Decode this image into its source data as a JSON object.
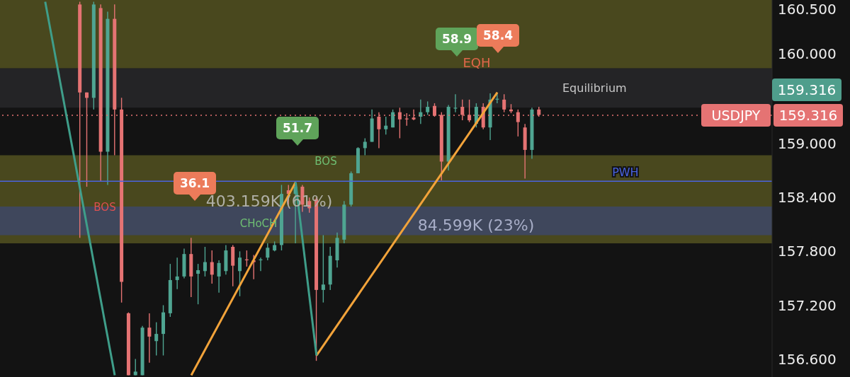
{
  "chart_data": {
    "type": "candlestick",
    "categories": [
      null,
      null,
      null,
      null,
      null,
      null,
      null,
      null,
      null,
      null,
      null,
      null,
      null,
      null,
      null,
      null,
      null,
      null,
      null,
      null,
      null,
      null,
      null,
      null,
      null,
      null,
      null,
      null,
      null,
      null,
      null,
      null,
      null,
      null,
      null,
      null,
      null,
      null,
      null,
      null,
      null,
      null,
      null,
      null,
      null,
      null,
      null,
      null,
      null,
      null,
      null,
      null,
      null,
      null,
      null,
      null,
      null,
      null,
      null,
      null,
      null,
      null,
      null,
      null,
      null,
      null,
      null,
      null,
      null,
      null,
      null,
      null,
      null,
      null,
      null,
      null,
      null,
      null,
      null,
      null,
      null,
      null,
      null,
      null,
      null,
      null,
      null,
      null,
      null,
      null,
      null,
      null,
      null,
      null,
      null,
      null,
      null,
      null,
      null,
      null,
      null,
      null,
      null,
      null,
      null,
      null,
      null,
      null,
      null,
      null,
      null
    ],
    "ohlc": [
      null,
      null,
      null,
      null,
      null,
      null,
      null,
      null,
      null,
      null,
      null,
      [
        160.55,
        160.58,
        157.95,
        159.57
      ],
      [
        159.57,
        159.57,
        158.52,
        159.51
      ],
      [
        159.51,
        160.58,
        159.38,
        160.55
      ],
      [
        160.51,
        160.55,
        158.58,
        158.91
      ],
      [
        158.91,
        160.47,
        158.54,
        160.39
      ],
      [
        160.39,
        160.55,
        158.87,
        159.38
      ],
      [
        159.38,
        159.51,
        157.23,
        157.46
      ],
      [
        157.11,
        157.12,
        156.42,
        156.42
      ],
      [
        156.42,
        156.6,
        156.42,
        156.46
      ],
      [
        156.42,
        156.97,
        156.42,
        156.95
      ],
      [
        156.95,
        157.11,
        156.56,
        156.85
      ],
      [
        156.8,
        157.01,
        156.64,
        156.88
      ],
      [
        156.88,
        157.2,
        156.64,
        157.12
      ],
      [
        157.11,
        157.66,
        157.07,
        157.48
      ],
      [
        157.48,
        157.73,
        157.38,
        157.52
      ],
      [
        157.52,
        157.83,
        157.5,
        157.77
      ],
      [
        157.77,
        157.95,
        157.29,
        157.52
      ],
      [
        157.55,
        157.66,
        157.21,
        157.59
      ],
      [
        157.58,
        157.85,
        157.52,
        157.68
      ],
      [
        157.68,
        157.81,
        157.44,
        157.54
      ],
      [
        157.52,
        157.7,
        157.34,
        157.67
      ],
      [
        157.58,
        157.87,
        157.54,
        157.81
      ],
      [
        157.85,
        157.87,
        157.41,
        157.64
      ],
      [
        157.58,
        157.8,
        157.3,
        157.73
      ],
      [
        157.71,
        157.81,
        157.63,
        157.7
      ],
      [
        157.7,
        157.76,
        157.49,
        157.68
      ],
      [
        157.7,
        157.73,
        157.58,
        157.71
      ],
      [
        157.73,
        157.89,
        157.7,
        157.84
      ],
      [
        157.81,
        157.91,
        157.8,
        157.87
      ],
      [
        157.87,
        158.54,
        157.81,
        158.44
      ],
      [
        158.48,
        158.54,
        158.32,
        158.44
      ],
      [
        158.44,
        158.57,
        157.89,
        158.52
      ],
      [
        158.52,
        158.54,
        158.24,
        158.32
      ],
      [
        158.36,
        158.4,
        158.23,
        158.28
      ],
      [
        158.38,
        158.4,
        156.58,
        157.37
      ],
      [
        157.37,
        157.98,
        157.23,
        157.43
      ],
      [
        157.43,
        157.85,
        157.37,
        157.75
      ],
      [
        157.7,
        158.01,
        157.62,
        157.95
      ],
      [
        157.93,
        158.36,
        157.89,
        158.32
      ],
      [
        158.32,
        158.69,
        158.3,
        158.67
      ],
      [
        158.67,
        158.96,
        158.67,
        158.95
      ],
      [
        158.95,
        159.06,
        158.87,
        159.02
      ],
      [
        159.02,
        159.38,
        159.02,
        159.28
      ],
      [
        159.3,
        159.35,
        158.95,
        159.16
      ],
      [
        159.16,
        159.3,
        159.1,
        159.2
      ],
      [
        159.18,
        159.38,
        159.18,
        159.35
      ],
      [
        159.35,
        159.4,
        159.06,
        159.27
      ],
      [
        159.28,
        159.34,
        159.2,
        159.27
      ],
      [
        159.29,
        159.38,
        159.26,
        159.27
      ],
      [
        159.3,
        159.49,
        159.22,
        159.35
      ],
      [
        159.35,
        159.47,
        159.32,
        159.41
      ],
      [
        159.42,
        159.45,
        159.3,
        159.31
      ],
      [
        159.32,
        159.35,
        158.59,
        158.8
      ],
      [
        158.8,
        159.43,
        158.7,
        159.41
      ],
      [
        159.39,
        159.55,
        159.35,
        159.4
      ],
      [
        159.41,
        159.49,
        159.26,
        159.32
      ],
      [
        159.32,
        159.49,
        159.24,
        159.26
      ],
      [
        159.22,
        159.45,
        159.18,
        159.41
      ],
      [
        159.41,
        159.45,
        159.16,
        159.18
      ],
      [
        159.18,
        159.56,
        159.04,
        159.49
      ],
      [
        159.49,
        159.57,
        159.45,
        159.5
      ],
      [
        159.49,
        159.55,
        159.35,
        159.38
      ],
      [
        159.38,
        159.44,
        159.34,
        159.36
      ],
      [
        159.35,
        159.38,
        159.08,
        159.24
      ],
      [
        159.18,
        159.22,
        158.61,
        158.93
      ],
      [
        158.93,
        159.4,
        158.83,
        159.38
      ],
      [
        159.38,
        159.41,
        159.3,
        159.32
      ],
      null,
      null,
      null,
      null,
      null,
      null,
      null,
      null,
      null,
      null,
      null,
      null,
      null,
      null,
      null,
      null,
      null,
      null,
      null,
      null,
      null,
      null,
      null,
      null,
      null,
      null,
      null,
      null,
      null,
      null,
      null,
      null,
      null
    ],
    "series": [
      {
        "type": "line",
        "color": "#f2a33a",
        "values": [
          null,
          null,
          null,
          null,
          null,
          null,
          null,
          null,
          null,
          null,
          null,
          null,
          null,
          null,
          null,
          null,
          null,
          null,
          null,
          null,
          null,
          null,
          null,
          null,
          null,
          null,
          null,
          156.42,
          null,
          null,
          null,
          null,
          null,
          null,
          null,
          null,
          null,
          null,
          null,
          null,
          null,
          null,
          158.57,
          null,
          null,
          null,
          null,
          null,
          null,
          null,
          null,
          null,
          null,
          null,
          null,
          null,
          null,
          null,
          null,
          null,
          null,
          null,
          null,
          null,
          null,
          null,
          null,
          null,
          null,
          null,
          null,
          null,
          null,
          null,
          null,
          null,
          null,
          null,
          null,
          null,
          null,
          null,
          null,
          null,
          null,
          null,
          null,
          null,
          null,
          null,
          null,
          null,
          null,
          null,
          null,
          null,
          null,
          null,
          null,
          null,
          null,
          null,
          null,
          null,
          null,
          null,
          null,
          null,
          null,
          null,
          null
        ]
      },
      {
        "type": "line",
        "color": "#f2a33a",
        "values": [
          null,
          null,
          null,
          null,
          null,
          null,
          null,
          null,
          null,
          null,
          null,
          null,
          null,
          null,
          null,
          null,
          null,
          null,
          null,
          null,
          null,
          null,
          null,
          null,
          null,
          null,
          null,
          null,
          null,
          null,
          null,
          null,
          null,
          null,
          null,
          null,
          null,
          null,
          null,
          null,
          null,
          null,
          null,
          null,
          null,
          156.64,
          null,
          null,
          null,
          null,
          null,
          null,
          null,
          null,
          null,
          null,
          null,
          null,
          null,
          null,
          null,
          null,
          null,
          null,
          null,
          null,
          null,
          null,
          null,
          null,
          null,
          159.57,
          null,
          null,
          null,
          null,
          null,
          null,
          null,
          null,
          null,
          null,
          null,
          null,
          null,
          null,
          null,
          null,
          null,
          null,
          null,
          null,
          null,
          null,
          null,
          null,
          null,
          null,
          null,
          null,
          null,
          null,
          null,
          null,
          null,
          null,
          null,
          null,
          null,
          null,
          null
        ]
      },
      {
        "type": "line",
        "color": "#3f9e8a",
        "values": [
          null,
          null,
          null,
          null,
          null,
          null,
          160.58,
          null,
          null,
          null,
          null,
          null,
          null,
          null,
          null,
          null,
          156.42,
          null,
          null,
          null,
          null,
          null,
          null,
          null,
          null,
          null,
          null,
          null,
          null,
          null,
          null,
          null,
          null,
          null,
          null,
          null,
          null,
          null,
          null,
          null,
          null,
          null,
          null,
          null,
          null,
          null,
          null,
          null,
          null,
          null,
          null,
          null,
          null,
          null,
          null,
          null,
          null,
          null,
          null,
          null,
          null,
          null,
          null,
          null,
          null,
          null,
          null,
          null,
          null,
          null,
          null,
          null,
          null,
          null,
          null,
          null,
          null,
          null,
          null,
          null,
          null,
          null,
          null,
          null,
          null,
          null,
          null,
          null,
          null,
          null,
          null,
          null,
          null,
          null,
          null,
          null,
          null,
          null,
          null,
          null,
          null,
          null,
          null,
          null,
          null,
          null,
          null,
          null,
          null,
          null,
          null
        ]
      },
      {
        "type": "line",
        "color": "#3f9e8a",
        "values": [
          null,
          null,
          null,
          null,
          null,
          null,
          null,
          null,
          null,
          null,
          null,
          null,
          null,
          null,
          null,
          null,
          null,
          null,
          null,
          null,
          null,
          null,
          null,
          null,
          null,
          null,
          null,
          null,
          null,
          null,
          null,
          null,
          null,
          null,
          null,
          null,
          null,
          null,
          null,
          null,
          null,
          null,
          158.57,
          null,
          null,
          156.64,
          null,
          null,
          null,
          null,
          null,
          null,
          null,
          null,
          null,
          null,
          null,
          null,
          null,
          null,
          null,
          null,
          null,
          null,
          null,
          null,
          null,
          null,
          null,
          null,
          null,
          null,
          null,
          null,
          null,
          null,
          null,
          null,
          null,
          null,
          null,
          null,
          null,
          null,
          null,
          null,
          null,
          null,
          null,
          null,
          null,
          null,
          null,
          null,
          null,
          null,
          null,
          null,
          null,
          null,
          null,
          null,
          null,
          null,
          null,
          null,
          null,
          null,
          null,
          null,
          null
        ]
      }
    ],
    "ylim": [
      156.4,
      160.6
    ],
    "yticks": [
      {
        "value": 156.6,
        "label": "156.600"
      },
      {
        "value": 157.2,
        "label": "157.200"
      },
      {
        "value": 157.8,
        "label": "157.800"
      },
      {
        "value": 158.4,
        "label": "158.400"
      },
      {
        "value": 159,
        "label": "159.000"
      },
      {
        "value": 160,
        "label": "160.000"
      },
      {
        "value": 160.5,
        "label": "160.500"
      }
    ],
    "tick_labels": "y",
    "bands": [
      {
        "axis": "y",
        "from": 159.84,
        "to": 160.6,
        "color": "#8c8a2c"
      },
      {
        "axis": "y",
        "from": 159.4,
        "to": 159.84,
        "color": "#3a3a3e",
        "label": "Equilibrium"
      },
      {
        "axis": "y",
        "from": 157.89,
        "to": 158.87,
        "color": "#8c8a2c"
      },
      {
        "axis": "y",
        "from": 157.98,
        "to": 158.3,
        "color": "#3446a8"
      }
    ],
    "ref_lines": [
      {
        "axis": "y",
        "value": 158.58,
        "label": "PWH",
        "color": "#4a63e0",
        "line_style": "solid"
      },
      {
        "axis": "y",
        "value": 159.316,
        "label": "USDJPY",
        "color": "#e57373",
        "line_style": "dotted"
      }
    ],
    "annotations": [
      "58.9",
      "58.4",
      "EQH",
      "51.7",
      "36.1",
      "BOS",
      "BOS",
      "CHoCH",
      "403.159K (61%)",
      "84.599K (23%)",
      "159.316"
    ]
  }
}
